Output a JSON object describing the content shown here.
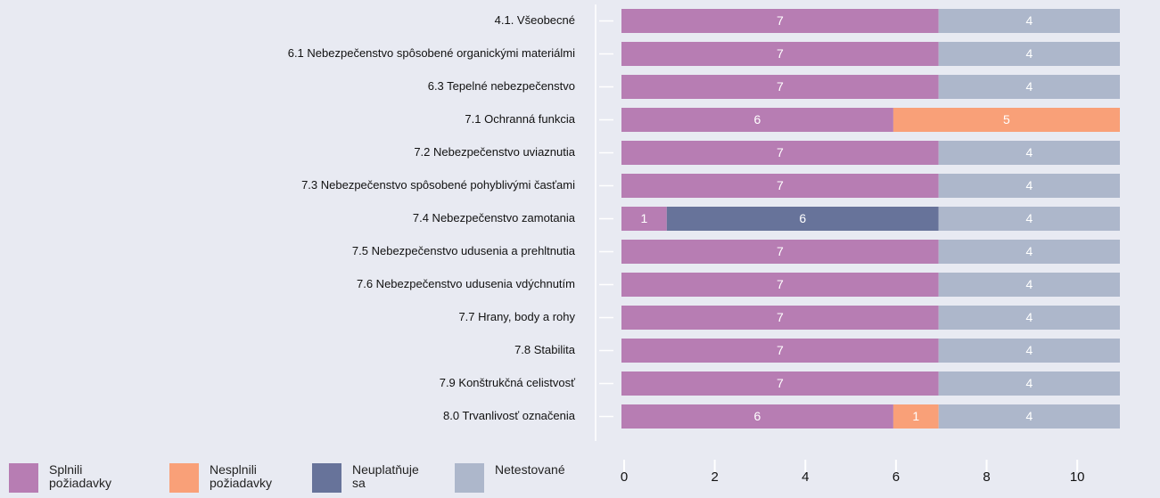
{
  "chart_data": {
    "type": "stacked-bar-horizontal",
    "categories": [
      "4.1. Všeobecné",
      "6.1 Nebezpečenstvo spôsobené organickými materiálmi",
      "6.3 Tepelné nebezpečenstvo",
      "7.1 Ochranná funkcia",
      "7.2 Nebezpečenstvo uviaznutia",
      "7.3 Nebezpečenstvo spôsobené pohyblivými časťami",
      "7.4 Nebezpečenstvo zamotania",
      "7.5 Nebezpečenstvo udusenia a prehltnutia",
      "7.6 Nebezpečenstvo udusenia vdýchnutím",
      "7.7 Hrany, body a rohy",
      "7.8 Stabilita",
      "7.9 Konštrukčná celistvosť",
      "8.0 Trvanlivosť označenia"
    ],
    "series": [
      {
        "name": "Splnili požiadavky",
        "color": "#b77db3",
        "values": [
          7,
          7,
          7,
          6,
          7,
          7,
          1,
          7,
          7,
          7,
          7,
          7,
          6
        ]
      },
      {
        "name": "Nesplnili požiadavky",
        "color": "#f9a078",
        "values": [
          null,
          null,
          null,
          5,
          null,
          null,
          null,
          null,
          null,
          null,
          null,
          null,
          1
        ]
      },
      {
        "name": "Neuplatňuje sa",
        "color": "#67739a",
        "values": [
          null,
          null,
          null,
          null,
          null,
          null,
          6,
          null,
          null,
          null,
          null,
          null,
          null
        ]
      },
      {
        "name": "Netestované",
        "color": "#adb7cb",
        "values": [
          4,
          4,
          4,
          null,
          4,
          4,
          4,
          4,
          4,
          4,
          4,
          4,
          4
        ]
      }
    ],
    "xlim": [
      0,
      11
    ],
    "xticks": [
      0,
      2,
      4,
      6,
      8,
      10
    ]
  }
}
